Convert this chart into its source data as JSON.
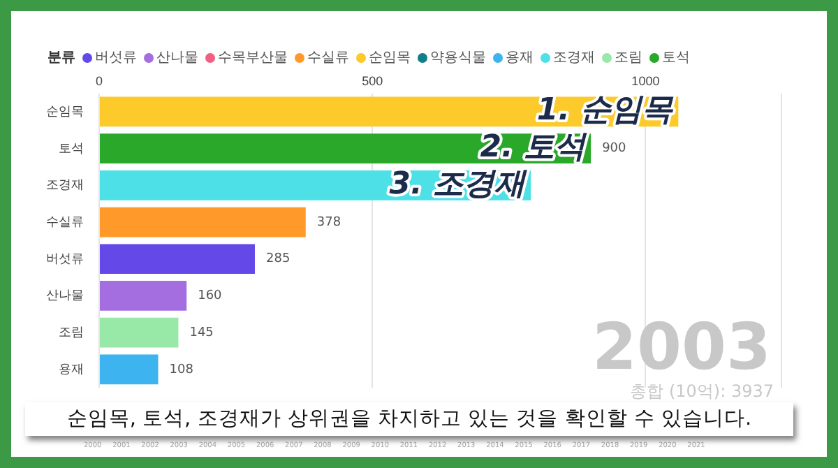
{
  "chart_data": {
    "type": "bar",
    "orientation": "horizontal",
    "legend_title": "분류",
    "legend": "top left",
    "grid": "x",
    "categories": [
      "순임목",
      "토석",
      "조경재",
      "수실류",
      "버섯류",
      "산나물",
      "조림",
      "용재"
    ],
    "xlim": [
      0,
      1250
    ],
    "xticks": [
      0,
      500,
      1000
    ],
    "series": [
      {
        "name": "버섯류",
        "color": "#6549e8",
        "values": [
          null,
          null,
          null,
          null,
          285,
          null,
          null,
          null
        ],
        "value_labels": [
          null,
          null,
          null,
          null,
          "285",
          null,
          null,
          null
        ]
      },
      {
        "name": "산나물",
        "color": "#a46ee0",
        "values": [
          null,
          null,
          null,
          null,
          null,
          160,
          null,
          null
        ],
        "value_labels": [
          null,
          null,
          null,
          null,
          null,
          "160",
          null,
          null
        ]
      },
      {
        "name": "수목부산물",
        "color": "#f06080",
        "values": [
          null,
          null,
          null,
          null,
          null,
          null,
          null,
          null
        ],
        "value_labels": [
          null,
          null,
          null,
          null,
          null,
          null,
          null,
          null
        ]
      },
      {
        "name": "수실류",
        "color": "#ff9a2a",
        "values": [
          null,
          null,
          null,
          378,
          null,
          null,
          null,
          null
        ],
        "value_labels": [
          null,
          null,
          null,
          "378",
          null,
          null,
          null,
          null
        ]
      },
      {
        "name": "순임목",
        "color": "#fdca2b",
        "values": [
          1060,
          null,
          null,
          null,
          null,
          null,
          null,
          null
        ],
        "value_labels": [
          null,
          null,
          null,
          null,
          null,
          null,
          null,
          null
        ]
      },
      {
        "name": "약용식물",
        "color": "#107f87",
        "values": [
          null,
          null,
          null,
          null,
          null,
          null,
          null,
          null
        ],
        "value_labels": [
          null,
          null,
          null,
          null,
          null,
          null,
          null,
          null
        ]
      },
      {
        "name": "용재",
        "color": "#3db4ef",
        "values": [
          null,
          null,
          null,
          null,
          null,
          null,
          null,
          108
        ],
        "value_labels": [
          null,
          null,
          null,
          null,
          null,
          null,
          null,
          "108"
        ]
      },
      {
        "name": "조경재",
        "color": "#4de0e6",
        "values": [
          null,
          null,
          790,
          null,
          null,
          null,
          null,
          null
        ],
        "value_labels": [
          null,
          null,
          null,
          null,
          null,
          null,
          null,
          null
        ]
      },
      {
        "name": "조림",
        "color": "#98e8a8",
        "values": [
          null,
          null,
          null,
          null,
          null,
          null,
          145,
          null
        ],
        "value_labels": [
          null,
          null,
          null,
          null,
          null,
          null,
          "145",
          null
        ]
      },
      {
        "name": "토석",
        "color": "#2aa82a",
        "values": [
          null,
          900,
          null,
          null,
          null,
          null,
          null,
          null
        ],
        "value_labels": [
          null,
          "900",
          null,
          null,
          null,
          null,
          null,
          null
        ]
      }
    ],
    "annotations": [
      {
        "text": "1. 순임목",
        "x": 1060,
        "y": "순임목"
      },
      {
        "text": "2. 토석",
        "x": 900,
        "y": "토석"
      },
      {
        "text": "3. 조경재",
        "x": 790,
        "y": "조경재"
      },
      "2003",
      "총합 (10억): 3937",
      "순임목, 토석, 조경재가 상위권을 차지하고 있는 것을 확인할 수 있습니다.",
      "2000",
      "2001",
      "2002",
      "2003",
      "2004",
      "2005",
      "2006",
      "2007",
      "2008",
      "2009",
      "2010",
      "2011",
      "2012",
      "2013",
      "2014",
      "2015",
      "2016",
      "2017",
      "2018",
      "2019",
      "2020",
      "2021"
    ]
  }
}
